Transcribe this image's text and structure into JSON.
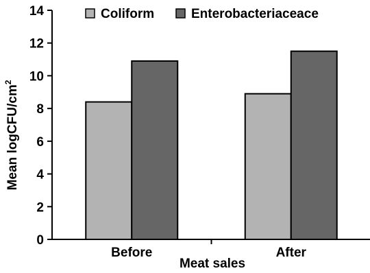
{
  "chart_data": {
    "type": "bar",
    "title": "",
    "xlabel": "Meat sales",
    "ylabel": "Mean logCFU/cm",
    "ylabel_superscript": "2",
    "categories": [
      "Before",
      "After"
    ],
    "ylim": [
      0,
      14
    ],
    "yticks": [
      0,
      2,
      4,
      6,
      8,
      10,
      12,
      14
    ],
    "ytick_labels": [
      "0",
      "2",
      "4",
      "6",
      "8",
      "10",
      "12",
      "14"
    ],
    "series": [
      {
        "name": "Coliform",
        "values": [
          8.4,
          8.9
        ],
        "color": "#b3b3b3"
      },
      {
        "name": "Enterobacteriaceace",
        "values": [
          10.9,
          11.5
        ],
        "color": "#666666"
      }
    ],
    "grid": false,
    "legend_position": "top"
  }
}
